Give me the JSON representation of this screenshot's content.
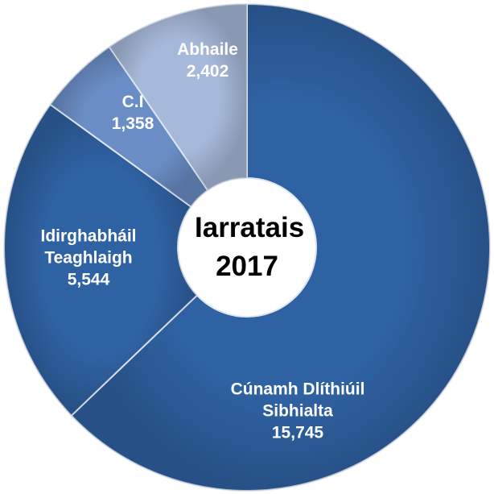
{
  "chart_data": {
    "type": "donut",
    "title": "Iarratais 2017",
    "categories": [
      "Cúnamh Dlíthiúil Sibhialta",
      "Idirghabháil Teaghlaigh",
      "C.I",
      "Abhaile"
    ],
    "values": [
      15745,
      5544,
      1358,
      2402
    ],
    "value_labels": [
      "15,745",
      "5,544",
      "1,358",
      "2,402"
    ],
    "colors": [
      "#2f62a3",
      "#2f62a3",
      "#6a8dc5",
      "#a7b9da"
    ]
  }
}
